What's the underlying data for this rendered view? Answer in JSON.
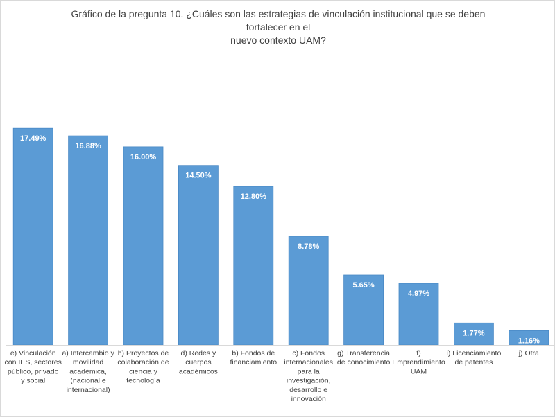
{
  "chart_data": {
    "type": "bar",
    "title_lines": [
      "Gráfico de la pregunta 10. ¿Cuáles son las estrategias de vinculación institucional que se deben fortalecer en el",
      "nuevo contexto UAM?"
    ],
    "categories": [
      [
        "e) Vinculación",
        "con IES, sectores",
        "público, privado",
        "y social"
      ],
      [
        "a) Intercambio y",
        "movilidad",
        "académica,",
        "(nacional e",
        "internacional)"
      ],
      [
        "h) Proyectos de",
        "colaboración de",
        "ciencia y",
        "tecnología"
      ],
      [
        "d) Redes y",
        "cuerpos",
        "académicos"
      ],
      [
        "b) Fondos de",
        "financiamiento"
      ],
      [
        "c) Fondos",
        "internacionales",
        "para la",
        "investigación,",
        "desarrollo e",
        "innovación"
      ],
      [
        "g) Transferencia",
        "de conocimiento"
      ],
      [
        "f)",
        "Emprendimiento",
        "UAM"
      ],
      [
        "i) Licenciamiento",
        "de patentes"
      ],
      [
        "j) Otra"
      ]
    ],
    "values": [
      17.49,
      16.88,
      16.0,
      14.5,
      12.8,
      8.78,
      5.65,
      4.97,
      1.77,
      1.16
    ],
    "data_labels": [
      "17.49%",
      "16.88%",
      "16.00%",
      "14.50%",
      "12.80%",
      "8.78%",
      "5.65%",
      "4.97%",
      "1.77%",
      "1.16%"
    ],
    "ylim": [
      0,
      18.9
    ],
    "grid": false,
    "legend": "none",
    "colors": {
      "bar": "#5b9bd5",
      "bar_edge": "#4a89c5",
      "text": "#404040",
      "label": "#ffffff"
    }
  }
}
